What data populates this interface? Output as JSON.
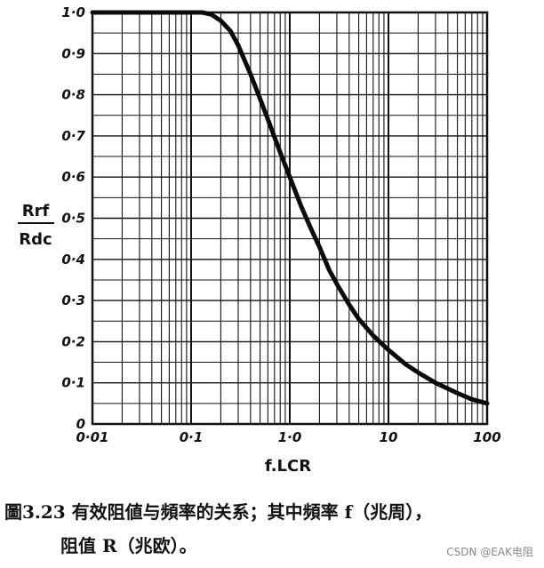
{
  "chart_data": {
    "type": "line",
    "xlabel": "f.LCR",
    "ylabel_numerator": "Rrf",
    "ylabel_denominator": "Rdc",
    "xscale": "log",
    "xlim": [
      0.01,
      100
    ],
    "ylim": [
      0,
      1.0
    ],
    "grid": true,
    "x_tick_labels": [
      "0·01",
      "0·1",
      "1·0",
      "10",
      "100"
    ],
    "x_tick_values": [
      0.01,
      0.1,
      1,
      10,
      100
    ],
    "y_tick_labels": [
      "0",
      "0·1",
      "0·2",
      "0·3",
      "0·4",
      "0·5",
      "0·6",
      "0·7",
      "0·8",
      "0·9",
      "1·0"
    ],
    "y_tick_values": [
      0,
      0.1,
      0.2,
      0.3,
      0.4,
      0.5,
      0.6,
      0.7,
      0.8,
      0.9,
      1.0
    ],
    "series": [
      {
        "x": [
          0.01,
          0.05,
          0.1,
          0.13,
          0.16,
          0.2,
          0.25,
          0.3,
          0.4,
          0.5,
          0.6,
          0.8,
          1.0,
          1.3,
          1.6,
          2.0,
          2.5,
          3.0,
          4.0,
          5.0,
          7.0,
          10,
          15,
          20,
          30,
          50,
          70,
          100
        ],
        "y": [
          1.0,
          1.0,
          1.0,
          1.0,
          0.995,
          0.98,
          0.955,
          0.92,
          0.85,
          0.79,
          0.74,
          0.66,
          0.6,
          0.53,
          0.48,
          0.43,
          0.375,
          0.34,
          0.29,
          0.255,
          0.215,
          0.18,
          0.145,
          0.125,
          0.1,
          0.075,
          0.06,
          0.05
        ]
      }
    ]
  },
  "caption": {
    "line1": "圖3.23 有效阻値与頻率的关系；其中頻率 f（兆周），",
    "line2": "阻值 R（兆欧）。"
  },
  "watermark": "CSDN @EAK电阻"
}
